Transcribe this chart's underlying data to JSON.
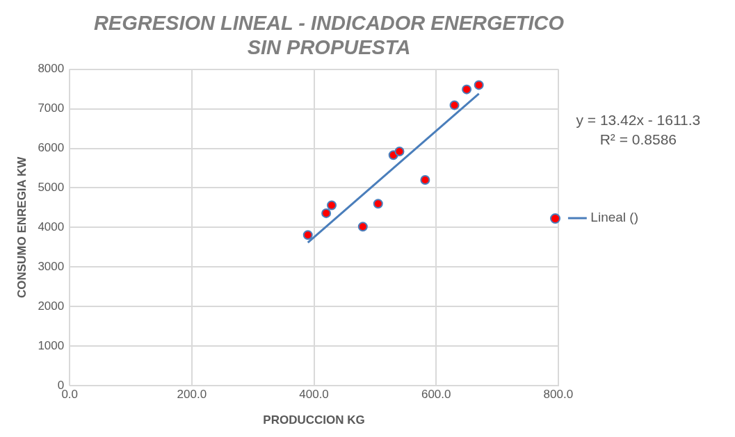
{
  "chart_data": {
    "type": "scatter",
    "title": "REGRESION LINEAL - INDICADOR ENERGETICO\nSIN PROPUESTA",
    "xlabel": "PRODUCCION KG",
    "ylabel": "CONSUMO ENREGIA KW",
    "x": [
      390,
      420,
      429,
      480,
      505,
      530,
      540,
      582,
      630,
      650,
      670
    ],
    "series": [
      {
        "color": "#ff0000",
        "values": [
          3810,
          4360,
          4560,
          4020,
          4600,
          5830,
          5920,
          5200,
          7090,
          7490,
          7600
        ]
      },
      {
        "type": "line",
        "name": "Lineal ()",
        "color": "#4a7ebb",
        "x": [
          390,
          670
        ],
        "values": [
          3620,
          7380
        ],
        "marker": "none"
      }
    ],
    "xlim": [
      0,
      800
    ],
    "xticks": [
      {
        "value": 0,
        "label": "0.0"
      },
      {
        "value": 200,
        "label": "200.0"
      },
      {
        "value": 400,
        "label": "400.0"
      },
      {
        "value": 600,
        "label": "600.0"
      },
      {
        "value": 800,
        "label": "800.0"
      }
    ],
    "ylim": [
      0,
      8000
    ],
    "yticks": [
      0,
      1000,
      2000,
      3000,
      4000,
      5000,
      6000,
      7000,
      8000
    ],
    "grid": true,
    "legend": "right",
    "marker": "circle",
    "annotations": [
      "y = 13.42x - 1611.3",
      "R² = 0.8586"
    ]
  }
}
